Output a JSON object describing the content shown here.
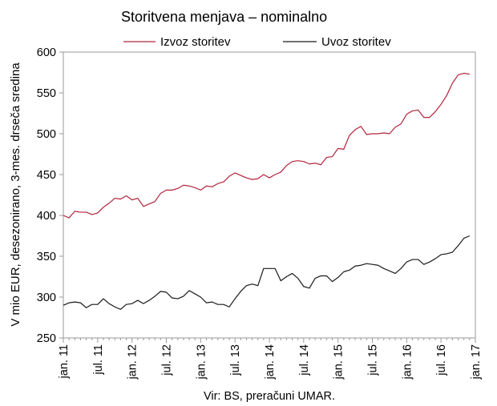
{
  "chart_data": {
    "type": "line",
    "title": "Storitvena menjava – nominalno",
    "ylabel": "V mio EUR, desezonirano, 3-mes. drseča sredina",
    "xlabel": "",
    "source": "Vir: BS, preračuni UMAR.",
    "ylim": [
      250,
      600
    ],
    "yticks": [
      250,
      300,
      350,
      400,
      450,
      500,
      550,
      600
    ],
    "xlim": [
      0,
      72
    ],
    "grid": false,
    "legend_position": "top",
    "xtick_labels": [
      {
        "pos": 0,
        "label": "jan. 11"
      },
      {
        "pos": 6,
        "label": "jul. 11"
      },
      {
        "pos": 12,
        "label": "jan. 12"
      },
      {
        "pos": 18,
        "label": "jul. 12"
      },
      {
        "pos": 24,
        "label": "jan. 13"
      },
      {
        "pos": 30,
        "label": "jul. 13"
      },
      {
        "pos": 36,
        "label": "jan. 14"
      },
      {
        "pos": 42,
        "label": "jul. 14"
      },
      {
        "pos": 48,
        "label": "jan. 15"
      },
      {
        "pos": 54,
        "label": "jul. 15"
      },
      {
        "pos": 60,
        "label": "jan. 16"
      },
      {
        "pos": 66,
        "label": "jul. 16"
      },
      {
        "pos": 72,
        "label": "jan. 17"
      }
    ],
    "series": [
      {
        "name": "Izvoz storitev",
        "color": "#b2243c",
        "values": [
          400,
          397,
          405,
          404,
          404,
          401,
          403,
          410,
          415,
          421,
          420,
          424,
          419,
          421,
          411,
          414,
          417,
          427,
          431,
          431,
          433,
          437,
          436,
          434,
          431,
          436,
          435,
          439,
          441,
          448,
          452,
          449,
          446,
          444,
          445,
          450,
          446,
          450,
          453,
          461,
          466,
          467,
          466,
          463,
          464,
          462,
          471,
          472,
          482,
          481,
          498,
          505,
          509,
          499,
          500,
          500,
          501,
          500,
          508,
          512,
          524,
          528,
          529,
          520,
          520,
          527,
          536,
          547,
          562,
          572,
          574,
          573
        ]
      },
      {
        "name": "Uvoz storitev",
        "color": "#1a1a1a",
        "values": [
          290,
          293,
          294,
          293,
          287,
          291,
          291,
          298,
          292,
          288,
          285,
          291,
          292,
          296,
          292,
          296,
          301,
          307,
          306,
          299,
          298,
          301,
          308,
          304,
          300,
          293,
          294,
          291,
          291,
          288,
          298,
          307,
          314,
          316,
          314,
          335,
          335,
          335,
          320,
          325,
          329,
          323,
          313,
          311,
          323,
          326,
          326,
          319,
          324,
          331,
          333,
          338,
          339,
          341,
          340,
          339,
          335,
          332,
          329,
          335,
          343,
          346,
          346,
          340,
          343,
          347,
          352,
          353,
          355,
          363,
          372,
          375
        ]
      }
    ]
  }
}
